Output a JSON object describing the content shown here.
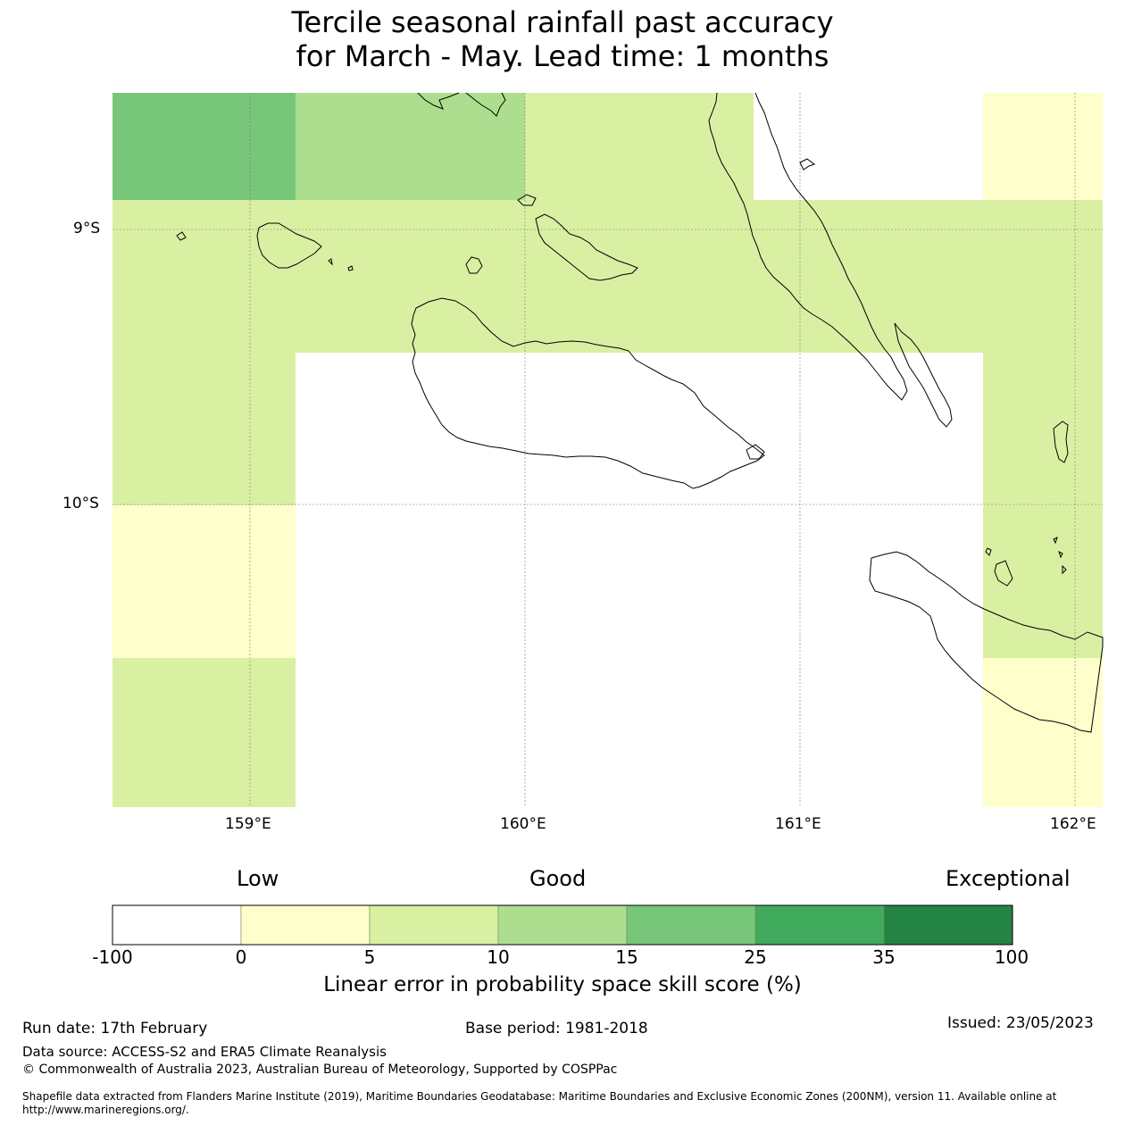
{
  "title": {
    "line1": "Tercile seasonal rainfall past accuracy",
    "line2": "for March - May. Lead time: 1 months"
  },
  "axes": {
    "lat_labels": [
      "9°S",
      "10°S"
    ],
    "lon_labels": [
      "159°E",
      "160°E",
      "161°E",
      "162°E"
    ]
  },
  "colorbar": {
    "categories": [
      "Low",
      "Good",
      "Exceptional"
    ],
    "ticks": [
      "-100",
      "0",
      "5",
      "10",
      "15",
      "25",
      "35",
      "100"
    ],
    "colors": [
      "#ffffff",
      "#ffffcc",
      "#d9f0a3",
      "#addd8e",
      "#78c679",
      "#41ab5d",
      "#238443"
    ],
    "label": "Linear error in probability space skill score (%)"
  },
  "footer": {
    "run_date": "Run date: 17th February",
    "base_period": "Base period: 1981-2018",
    "issued": "Issued: 23/05/2023",
    "data_source": "Data source: ACCESS-S2 and ERA5 Climate Reanalysis",
    "copyright": "© Commonwealth of Australia 2023, Australian Bureau of Meteorology, Supported by COSPPac",
    "shapefile_line1": "Shapefile data extracted from Flanders Marine Institute (2019), Maritime Boundaries Geodatabase: Maritime Boundaries and Exclusive Economic Zones (200NM), version 11. Available online at",
    "shapefile_line2": "http://www.marineregions.org/."
  }
}
